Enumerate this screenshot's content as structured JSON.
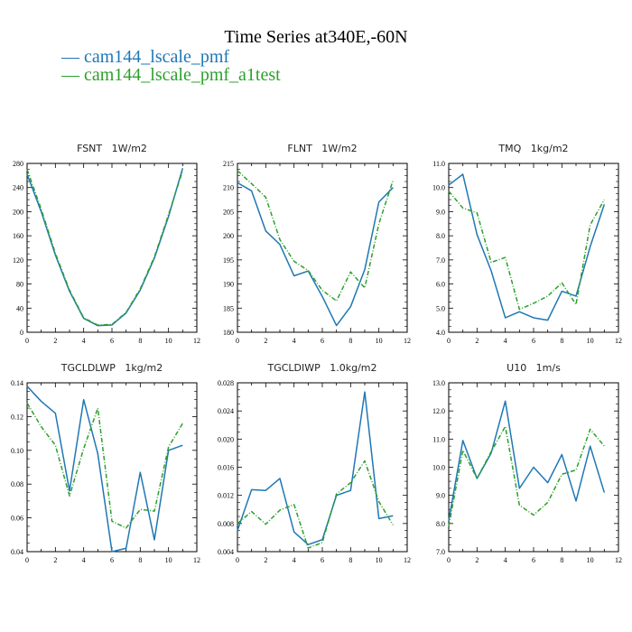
{
  "title": "Time Series at340E,-60N",
  "legend": [
    {
      "label": "— cam144_lscale_pmf",
      "color": "#1f77b4",
      "dashed": false
    },
    {
      "label": "— cam144_lscale_pmf_a1test",
      "color": "#2ca02c",
      "dashed": true
    }
  ],
  "chart_data": [
    {
      "type": "line",
      "title": "FSNT   1W/m2",
      "x": [
        0,
        1,
        2,
        3,
        4,
        5,
        6,
        7,
        8,
        9,
        10,
        11
      ],
      "xlim": [
        0,
        12
      ],
      "xticks": [
        "0",
        "2",
        "4",
        "6",
        "8",
        "10",
        "12"
      ],
      "ylim": [
        0,
        280
      ],
      "yticks": [
        "0",
        "40",
        "80",
        "120",
        "160",
        "200",
        "240",
        "280"
      ],
      "series": [
        {
          "values": [
            262,
            200,
            128,
            68,
            23,
            11,
            12,
            32,
            70,
            123,
            192,
            272
          ],
          "color": "#1f77b4",
          "dashed": false
        },
        {
          "values": [
            270,
            204,
            131,
            70,
            24,
            12,
            13,
            33,
            72,
            125,
            195,
            268
          ],
          "color": "#2ca02c",
          "dashed": true
        }
      ]
    },
    {
      "type": "line",
      "title": "FLNT   1W/m2",
      "x": [
        0,
        1,
        2,
        3,
        4,
        5,
        6,
        7,
        8,
        9,
        10,
        11
      ],
      "xlim": [
        0,
        12
      ],
      "xticks": [
        "0",
        "2",
        "4",
        "6",
        "8",
        "10",
        "12"
      ],
      "ylim": [
        180,
        215
      ],
      "yticks": [
        "180",
        "185",
        "190",
        "195",
        "200",
        "205",
        "210",
        "215"
      ],
      "series": [
        {
          "values": [
            211.0,
            209.3,
            201.0,
            198.2,
            191.7,
            192.7,
            187.4,
            181.4,
            185.3,
            193.0,
            207.0,
            210.0
          ],
          "color": "#1f77b4",
          "dashed": false
        },
        {
          "values": [
            213.5,
            210.8,
            208.0,
            199.2,
            194.7,
            192.8,
            188.7,
            186.5,
            192.5,
            189.2,
            202.5,
            211.5
          ],
          "color": "#2ca02c",
          "dashed": true
        }
      ]
    },
    {
      "type": "line",
      "title": "TMQ   1kg/m2",
      "x": [
        0,
        1,
        2,
        3,
        4,
        5,
        6,
        7,
        8,
        9,
        10,
        11
      ],
      "xlim": [
        0,
        12
      ],
      "xticks": [
        "0",
        "2",
        "4",
        "6",
        "8",
        "10",
        "12"
      ],
      "ylim": [
        4.0,
        11.0
      ],
      "yticks": [
        "4.0",
        "5.0",
        "6.0",
        "7.0",
        "8.0",
        "9.0",
        "10.0",
        "11.0"
      ],
      "series": [
        {
          "values": [
            10.1,
            10.55,
            8.05,
            6.55,
            4.6,
            4.85,
            4.6,
            4.5,
            5.7,
            5.5,
            7.55,
            9.3
          ],
          "color": "#1f77b4",
          "dashed": false
        },
        {
          "values": [
            9.85,
            9.15,
            8.95,
            6.9,
            7.1,
            4.95,
            5.2,
            5.5,
            6.05,
            5.15,
            8.45,
            9.5
          ],
          "color": "#2ca02c",
          "dashed": true
        }
      ]
    },
    {
      "type": "line",
      "title": "TGCLDLWP   1kg/m2",
      "x": [
        0,
        1,
        2,
        3,
        4,
        5,
        6,
        7,
        8,
        9,
        10,
        11
      ],
      "xlim": [
        0,
        12
      ],
      "xticks": [
        "0",
        "2",
        "4",
        "6",
        "8",
        "10",
        "12"
      ],
      "ylim": [
        0.04,
        0.14
      ],
      "yticks": [
        "0.04",
        "0.06",
        "0.08",
        "0.10",
        "0.12",
        "0.14"
      ],
      "series": [
        {
          "values": [
            0.138,
            0.129,
            0.122,
            0.076,
            0.13,
            0.098,
            0.04,
            0.042,
            0.087,
            0.047,
            0.1,
            0.103
          ],
          "color": "#1f77b4",
          "dashed": false
        },
        {
          "values": [
            0.128,
            0.114,
            0.103,
            0.073,
            0.101,
            0.125,
            0.058,
            0.054,
            0.065,
            0.064,
            0.102,
            0.116
          ],
          "color": "#2ca02c",
          "dashed": true
        }
      ]
    },
    {
      "type": "line",
      "title": "TGCLDIWP   1.0kg/m2",
      "x": [
        0,
        1,
        2,
        3,
        4,
        5,
        6,
        7,
        8,
        9,
        10,
        11
      ],
      "xlim": [
        0,
        12
      ],
      "xticks": [
        "0",
        "2",
        "4",
        "6",
        "8",
        "10",
        "12"
      ],
      "ylim": [
        0.004,
        0.028
      ],
      "yticks": [
        "0.004",
        "0.008",
        "0.012",
        "0.016",
        "0.020",
        "0.024",
        "0.028"
      ],
      "series": [
        {
          "values": [
            0.007,
            0.0128,
            0.0127,
            0.0144,
            0.0068,
            0.005,
            0.0057,
            0.012,
            0.0127,
            0.0267,
            0.0087,
            0.0091
          ],
          "color": "#1f77b4",
          "dashed": false
        },
        {
          "values": [
            0.008,
            0.0097,
            0.0079,
            0.0099,
            0.0107,
            0.0045,
            0.0053,
            0.0122,
            0.0138,
            0.0169,
            0.0111,
            0.0078
          ],
          "color": "#2ca02c",
          "dashed": true
        }
      ]
    },
    {
      "type": "line",
      "title": "U10   1m/s",
      "x": [
        0,
        1,
        2,
        3,
        4,
        5,
        6,
        7,
        8,
        9,
        10,
        11
      ],
      "xlim": [
        0,
        12
      ],
      "xticks": [
        "0",
        "2",
        "4",
        "6",
        "8",
        "10",
        "12"
      ],
      "ylim": [
        7.0,
        13.0
      ],
      "yticks": [
        "7.0",
        "8.0",
        "9.0",
        "10.0",
        "11.0",
        "12.0",
        "13.0"
      ],
      "series": [
        {
          "values": [
            8.1,
            10.95,
            9.6,
            10.5,
            12.35,
            9.25,
            10.0,
            9.45,
            10.45,
            8.8,
            10.75,
            9.1
          ],
          "color": "#1f77b4",
          "dashed": false
        },
        {
          "values": [
            7.9,
            10.6,
            9.6,
            10.55,
            11.45,
            8.65,
            8.3,
            8.75,
            9.75,
            9.9,
            11.35,
            10.75
          ],
          "color": "#2ca02c",
          "dashed": true
        }
      ]
    }
  ]
}
